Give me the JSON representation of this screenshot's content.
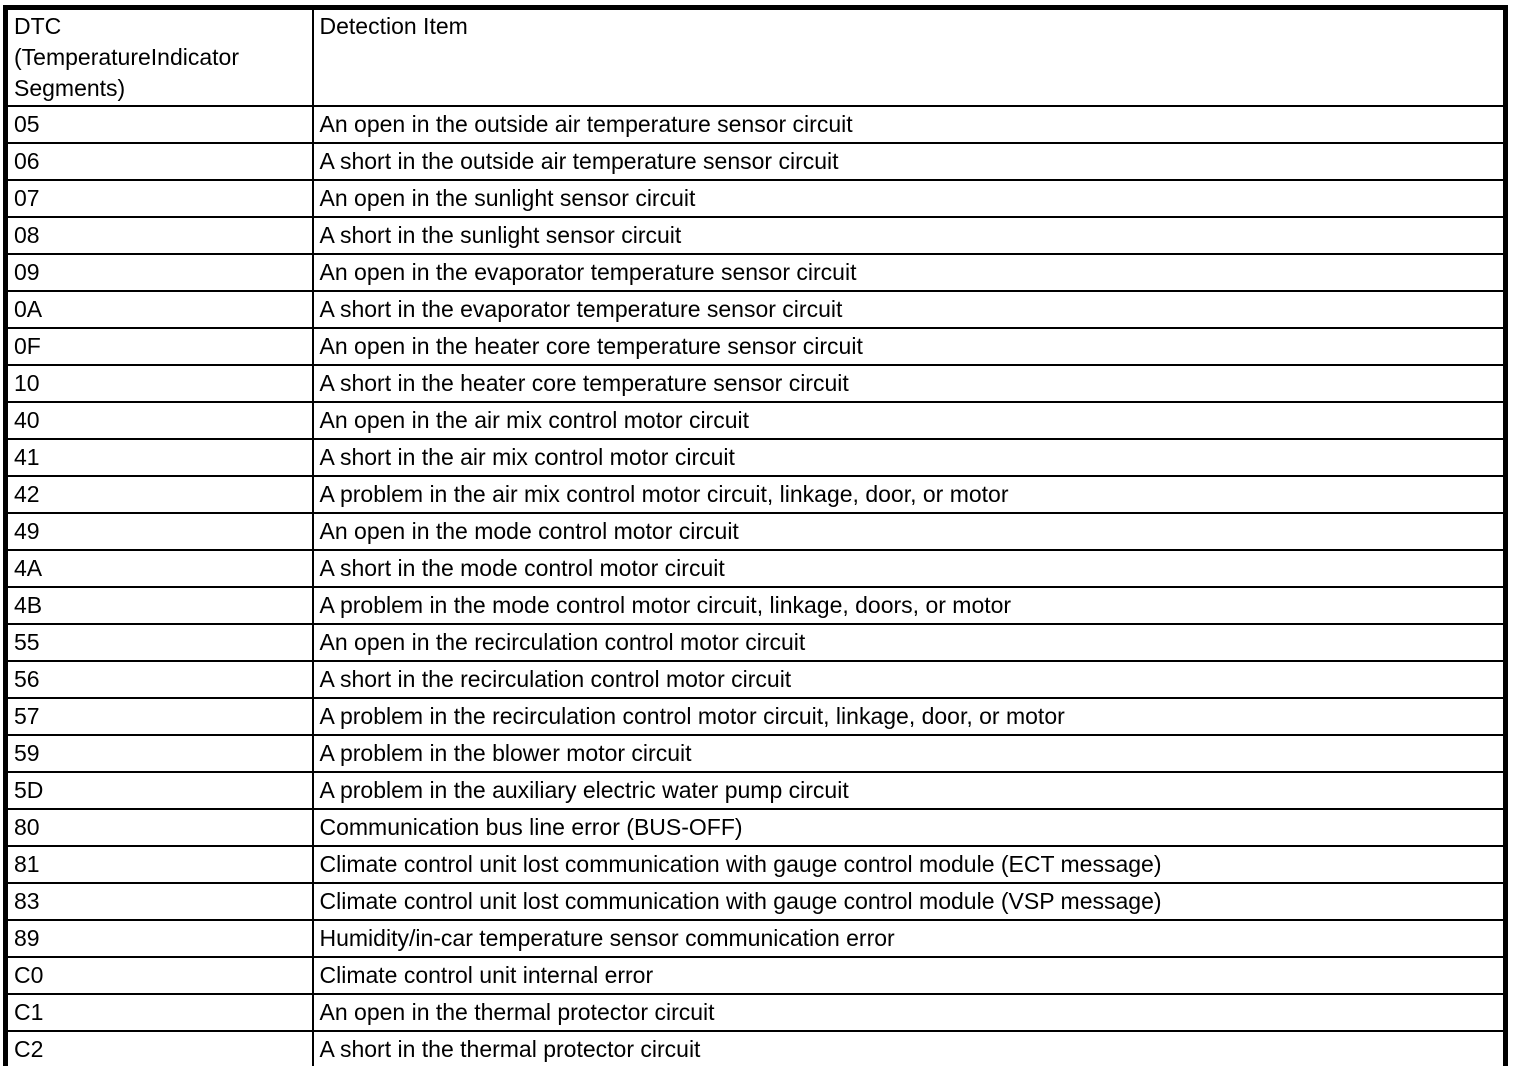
{
  "table": {
    "headers": {
      "dtc": "DTC\n(TemperatureIndicator\nSegments)",
      "detection": "Detection Item"
    },
    "rows": [
      {
        "code": "05",
        "item": "An open in the outside air temperature sensor circuit"
      },
      {
        "code": "06",
        "item": "A short in the outside air temperature sensor circuit"
      },
      {
        "code": "07",
        "item": "An open in the sunlight sensor circuit"
      },
      {
        "code": "08",
        "item": "A short in the sunlight sensor circuit"
      },
      {
        "code": "09",
        "item": "An open in the evaporator temperature sensor circuit"
      },
      {
        "code": "0A",
        "item": "A short in the evaporator temperature sensor circuit"
      },
      {
        "code": "0F",
        "item": "An open in the heater core temperature sensor circuit"
      },
      {
        "code": "10",
        "item": "A short in the heater core temperature sensor circuit"
      },
      {
        "code": "40",
        "item": "An open in the air mix control motor circuit"
      },
      {
        "code": "41",
        "item": "A short in the air mix control motor circuit"
      },
      {
        "code": "42",
        "item": "A problem in the air mix control motor circuit, linkage, door, or motor"
      },
      {
        "code": "49",
        "item": "An open in the mode control motor circuit"
      },
      {
        "code": "4A",
        "item": "A short in the mode control motor circuit"
      },
      {
        "code": "4B",
        "item": "A problem in the mode control motor circuit, linkage, doors, or motor"
      },
      {
        "code": "55",
        "item": "An open in the recirculation control motor circuit"
      },
      {
        "code": "56",
        "item": "A short in the recirculation control motor circuit"
      },
      {
        "code": "57",
        "item": "A problem in the recirculation control motor circuit, linkage, door, or motor"
      },
      {
        "code": "59",
        "item": "A problem in the blower motor circuit"
      },
      {
        "code": "5D",
        "item": "A problem in the auxiliary electric water pump circuit"
      },
      {
        "code": "80",
        "item": "Communication bus line error (BUS-OFF)"
      },
      {
        "code": "81",
        "item": "Climate control unit lost communication with gauge control module (ECT message)"
      },
      {
        "code": "83",
        "item": "Climate control unit lost communication with gauge control module (VSP message)"
      },
      {
        "code": "89",
        "item": "Humidity/in-car temperature sensor communication error"
      },
      {
        "code": "C0",
        "item": "Climate control unit internal error"
      },
      {
        "code": "C1",
        "item": "An open in the thermal protector circuit"
      },
      {
        "code": "C2",
        "item": "A short in the thermal protector circuit"
      }
    ]
  }
}
